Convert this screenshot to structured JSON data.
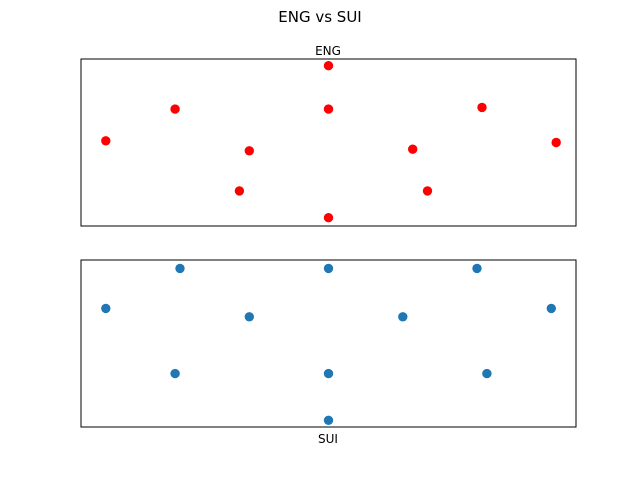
{
  "figure": {
    "title": "ENG vs SUI"
  },
  "chart_data": [
    {
      "type": "scatter",
      "title": "ENG",
      "xlabel": "",
      "ylabel": "",
      "xlim": [
        0,
        100
      ],
      "ylim": [
        0,
        100
      ],
      "axis_ticks": false,
      "grid": false,
      "color": "#ff0000",
      "points": [
        {
          "x": 50,
          "y": 96
        },
        {
          "x": 19,
          "y": 70
        },
        {
          "x": 50,
          "y": 70
        },
        {
          "x": 81,
          "y": 71
        },
        {
          "x": 5,
          "y": 51
        },
        {
          "x": 34,
          "y": 45
        },
        {
          "x": 67,
          "y": 46
        },
        {
          "x": 96,
          "y": 50
        },
        {
          "x": 32,
          "y": 21
        },
        {
          "x": 70,
          "y": 21
        },
        {
          "x": 50,
          "y": 5
        }
      ]
    },
    {
      "type": "scatter",
      "title": "",
      "xlabel": "SUI",
      "ylabel": "",
      "xlim": [
        0,
        100
      ],
      "ylim": [
        0,
        100
      ],
      "axis_ticks": false,
      "grid": false,
      "color": "#1f77b4",
      "points": [
        {
          "x": 20,
          "y": 95
        },
        {
          "x": 50,
          "y": 95
        },
        {
          "x": 80,
          "y": 95
        },
        {
          "x": 5,
          "y": 71
        },
        {
          "x": 34,
          "y": 66
        },
        {
          "x": 65,
          "y": 66
        },
        {
          "x": 95,
          "y": 71
        },
        {
          "x": 19,
          "y": 32
        },
        {
          "x": 50,
          "y": 32
        },
        {
          "x": 82,
          "y": 32
        },
        {
          "x": 50,
          "y": 4
        }
      ]
    }
  ]
}
